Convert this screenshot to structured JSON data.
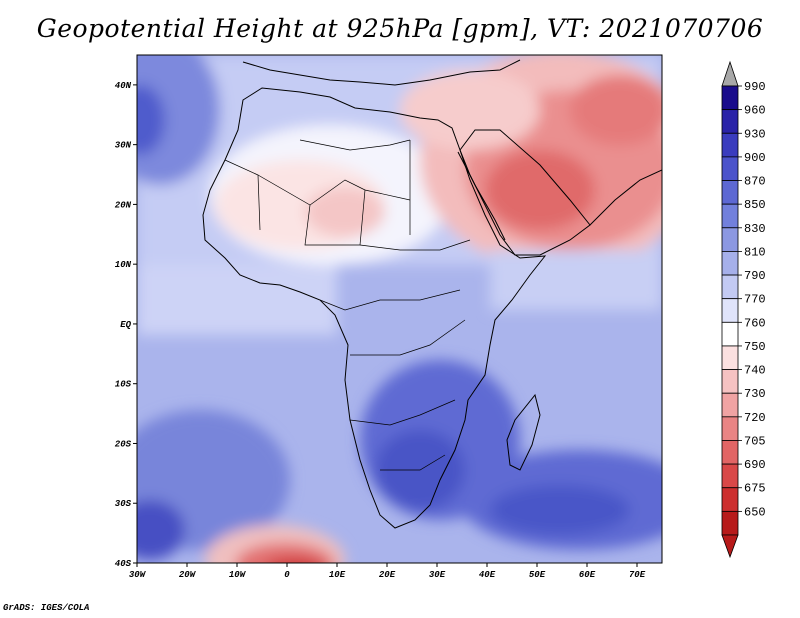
{
  "title": "Geopotential Height at 925hPa [gpm], VT: 2021070706",
  "credit": "GrADS: IGES/COLA",
  "map": {
    "lon_range": [
      -30,
      75
    ],
    "lat_range": [
      -40,
      45
    ],
    "lon_ticks": [
      {
        "value": -30,
        "label": "30W"
      },
      {
        "value": -20,
        "label": "20W"
      },
      {
        "value": -10,
        "label": "10W"
      },
      {
        "value": 0,
        "label": "0"
      },
      {
        "value": 10,
        "label": "10E"
      },
      {
        "value": 20,
        "label": "20E"
      },
      {
        "value": 30,
        "label": "30E"
      },
      {
        "value": 40,
        "label": "40E"
      },
      {
        "value": 50,
        "label": "50E"
      },
      {
        "value": 60,
        "label": "60E"
      },
      {
        "value": 70,
        "label": "70E"
      }
    ],
    "lat_ticks": [
      {
        "value": 40,
        "label": "40N"
      },
      {
        "value": 30,
        "label": "30N"
      },
      {
        "value": 20,
        "label": "20N"
      },
      {
        "value": 10,
        "label": "10N"
      },
      {
        "value": 0,
        "label": "EQ"
      },
      {
        "value": -10,
        "label": "10S"
      },
      {
        "value": -20,
        "label": "20S"
      },
      {
        "value": -30,
        "label": "30S"
      },
      {
        "value": -40,
        "label": "40S"
      }
    ]
  },
  "colorbar": {
    "levels": [
      "990",
      "960",
      "930",
      "900",
      "870",
      "850",
      "830",
      "810",
      "790",
      "770",
      "760",
      "750",
      "740",
      "730",
      "720",
      "705",
      "690",
      "675",
      "650"
    ],
    "colors": [
      "#1a0c8c",
      "#2a23a8",
      "#3a3cbe",
      "#4b53cb",
      "#5d68d3",
      "#7280dc",
      "#8c98e2",
      "#a6b0ea",
      "#c3caf3",
      "#e0e4fb",
      "#ffffff",
      "#fbe0e0",
      "#f6c2c2",
      "#f0a3a3",
      "#e98484",
      "#e26565",
      "#d94848",
      "#cc2e2e",
      "#b71a1a"
    ],
    "top_color": "#a8a8a8",
    "bottom_color": "#b71a1a"
  }
}
